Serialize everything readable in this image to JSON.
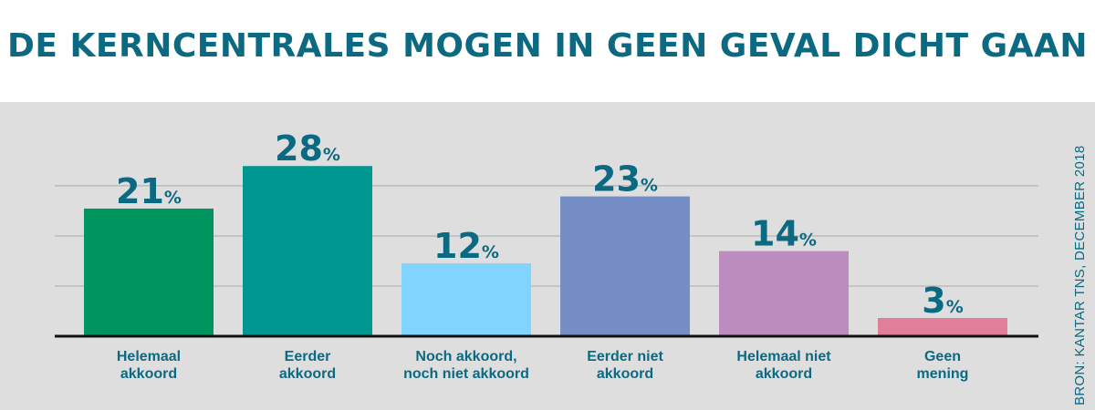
{
  "title": "DE KERNCENTRALES MOGEN IN GEEN GEVAL DICHT GAAN",
  "source": "BRON: KANTAR TNS, DECEMBER 2018",
  "chart_data": {
    "type": "bar",
    "title": "DE KERNCENTRALES MOGEN IN GEEN GEVAL DICHT GAAN",
    "categories": [
      [
        "Helemaal",
        "akkoord"
      ],
      [
        "Eerder",
        "akkoord"
      ],
      [
        "Noch akkoord,",
        "noch niet akkoord"
      ],
      [
        "Eerder niet",
        "akkoord"
      ],
      [
        "Helemaal niet",
        "akkoord"
      ],
      [
        "Geen",
        "mening"
      ]
    ],
    "values": [
      21,
      28,
      12,
      23,
      14,
      3
    ],
    "value_suffix": "%",
    "colors": [
      "#00945e",
      "#009690",
      "#80d4fd",
      "#758fc6",
      "#bb8dbf",
      "#df7f99"
    ],
    "ylim": [
      0,
      35
    ],
    "grid": true,
    "xlabel": "",
    "ylabel": ""
  }
}
